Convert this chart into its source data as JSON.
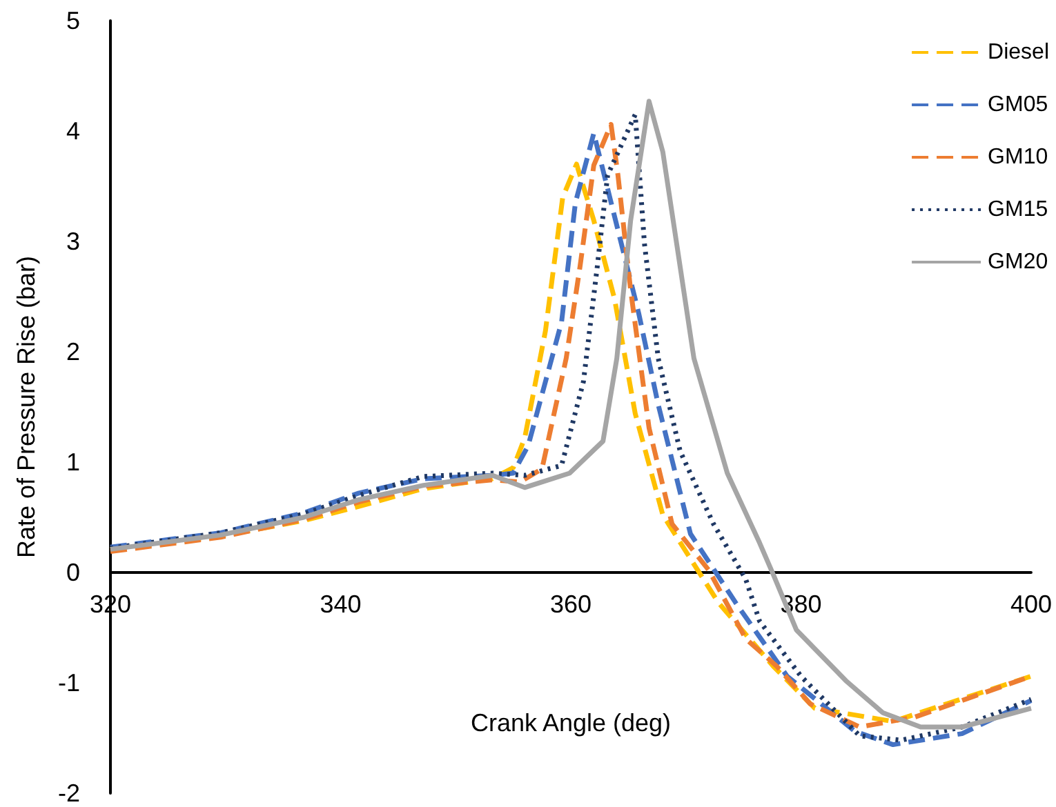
{
  "chart_data": {
    "type": "line",
    "xlabel": "Crank Angle (deg)",
    "ylabel": "Rate of Pressure Rise (bar)",
    "xlim": [
      320,
      400
    ],
    "xticks": [
      320,
      340,
      360,
      380,
      400
    ],
    "ylim": [
      -2,
      5
    ],
    "yticks": [
      -2,
      -1,
      0,
      1,
      2,
      3,
      4,
      5
    ],
    "grid": false,
    "legend": "top right",
    "marker": "none",
    "series": [
      {
        "name": "Diesel",
        "color": "#ffc000",
        "line_style": "dashed",
        "x": [
          320,
          329.6,
          336.8,
          341.6,
          347.2,
          353.2,
          355,
          356,
          357.8,
          359.3,
          360.5,
          362,
          363.8,
          365.6,
          368,
          372.8,
          377.6,
          381.2,
          388,
          400
        ],
        "values": [
          0.21,
          0.33,
          0.47,
          0.6,
          0.76,
          0.85,
          0.95,
          1.22,
          2.19,
          3.4,
          3.7,
          3.19,
          2.48,
          1.44,
          0.52,
          -0.27,
          -0.85,
          -1.23,
          -1.35,
          -0.94
        ]
      },
      {
        "name": "GM05",
        "color": "#4472c4",
        "line_style": "dashed",
        "x": [
          320,
          329.6,
          336.8,
          341.6,
          347.2,
          353.2,
          355,
          356.3,
          359.2,
          360.4,
          362,
          365.9,
          367.6,
          370.4,
          374.3,
          378.8,
          384.7,
          388,
          394,
          400
        ],
        "values": [
          0.23,
          0.36,
          0.54,
          0.72,
          0.85,
          0.88,
          0.9,
          1.15,
          2.27,
          3.35,
          3.98,
          2.35,
          1.52,
          0.35,
          -0.27,
          -0.94,
          -1.44,
          -1.56,
          -1.46,
          -1.16
        ]
      },
      {
        "name": "GM10",
        "color": "#ed7d31",
        "line_style": "dashed",
        "x": [
          320,
          329.6,
          336.8,
          341.6,
          347.2,
          353.2,
          355.6,
          357.5,
          359.6,
          360.8,
          362,
          363.5,
          364.1,
          365.2,
          366.8,
          368.8,
          372,
          375.2,
          377.9,
          380.8,
          385.1,
          389.9,
          400
        ],
        "values": [
          0.19,
          0.32,
          0.48,
          0.64,
          0.78,
          0.84,
          0.82,
          0.94,
          1.94,
          2.77,
          3.69,
          4.06,
          3.6,
          2.56,
          1.31,
          0.44,
          0.02,
          -0.6,
          -0.85,
          -1.19,
          -1.4,
          -1.31,
          -0.94
        ]
      },
      {
        "name": "GM15",
        "color": "#1f3864",
        "line_style": "dotted",
        "x": [
          320,
          329.6,
          336.8,
          341.6,
          347.2,
          353.2,
          356,
          359.2,
          361.1,
          362.3,
          363.2,
          365.6,
          366.4,
          367.6,
          369.5,
          372.4,
          375.2,
          376.4,
          380,
          385.1,
          388.7,
          394,
          400
        ],
        "values": [
          0.22,
          0.36,
          0.53,
          0.7,
          0.87,
          0.9,
          0.88,
          0.97,
          1.73,
          2.77,
          3.6,
          4.15,
          2.98,
          1.94,
          1.1,
          0.44,
          -0.06,
          -0.44,
          -0.94,
          -1.48,
          -1.52,
          -1.4,
          -1.15
        ]
      },
      {
        "name": "GM20",
        "color": "#a5a5a5",
        "line_style": "solid",
        "x": [
          320,
          329.6,
          336.8,
          341.6,
          347.2,
          353.2,
          356,
          359.9,
          362.8,
          364,
          365.2,
          366.8,
          368,
          369.2,
          370.7,
          373.6,
          376.4,
          377.6,
          379.6,
          383.9,
          387.1,
          390.4,
          394,
          400
        ],
        "values": [
          0.21,
          0.34,
          0.5,
          0.66,
          0.79,
          0.88,
          0.77,
          0.9,
          1.19,
          1.94,
          3.19,
          4.27,
          3.81,
          2.98,
          1.94,
          0.9,
          0.27,
          -0.02,
          -0.52,
          -0.98,
          -1.27,
          -1.4,
          -1.4,
          -1.23
        ]
      }
    ]
  }
}
